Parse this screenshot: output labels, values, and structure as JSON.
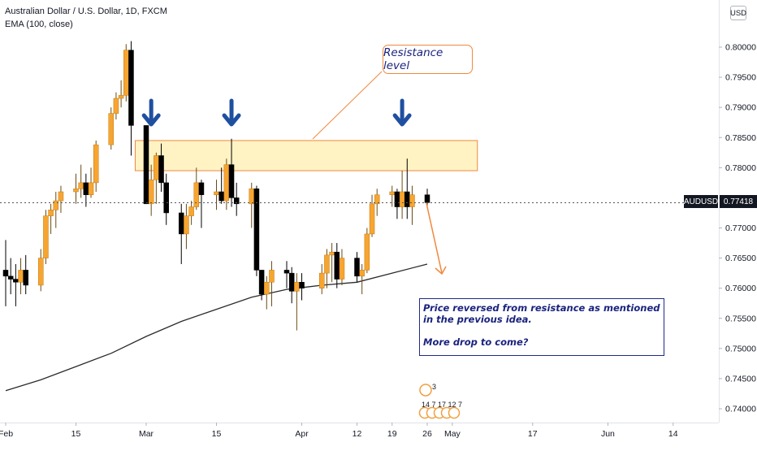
{
  "legend": {
    "symbol_line": "Australian Dollar / U.S. Dollar, 1D, FXCM",
    "indicator_line": "EMA (100, close)"
  },
  "currency_button": "USD",
  "price_tag": {
    "symbol": "AUDUSD",
    "value": "0.77418"
  },
  "callout": {
    "label": "Resistance level"
  },
  "note": {
    "lines": [
      "Price reversed from resistance as mentioned",
      "in the previous idea.",
      "",
      "More drop to come?"
    ]
  },
  "ideas_badges": {
    "top_count": "3",
    "row_counts": [
      "14",
      "7",
      "17",
      "12",
      "7"
    ]
  },
  "colors": {
    "up_candle": "#f7a531",
    "down_candle": "#000000",
    "ema_line": "#2b2b2b",
    "resistance_fill": "#fff3c4",
    "resistance_border": "#f0883e",
    "arrow": "#1f4fa0",
    "dotted_price_line": "#555555"
  },
  "chart_data": {
    "type": "candlestick",
    "title": "Australian Dollar / U.S. Dollar, 1D, FXCM",
    "y_axis": {
      "ticks": [
        "0.80000",
        "0.79500",
        "0.79000",
        "0.78500",
        "0.78000",
        "0.77500",
        "0.77000",
        "0.76500",
        "0.76000",
        "0.75500",
        "0.75000",
        "0.74500",
        "0.74000"
      ],
      "range": [
        0.7375,
        0.8075
      ],
      "side": "right"
    },
    "x_axis": {
      "ticks": [
        "Feb",
        "15",
        "Mar",
        "15",
        "Apr",
        "12",
        "19",
        "26",
        "May",
        "17",
        "Jun",
        "14"
      ],
      "start_date": "2021-02-01",
      "end_date": "2021-06-20"
    },
    "last_price": 0.77418,
    "resistance_zone": {
      "low": 0.7795,
      "high": 0.7845
    },
    "candles": [
      {
        "date": "2021-02-01",
        "open": 0.763,
        "high": 0.768,
        "low": 0.757,
        "close": 0.762
      },
      {
        "date": "2021-02-02",
        "open": 0.762,
        "high": 0.765,
        "low": 0.759,
        "close": 0.7615
      },
      {
        "date": "2021-02-03",
        "open": 0.7615,
        "high": 0.764,
        "low": 0.757,
        "close": 0.761
      },
      {
        "date": "2021-02-04",
        "open": 0.761,
        "high": 0.765,
        "low": 0.759,
        "close": 0.763
      },
      {
        "date": "2021-02-05",
        "open": 0.763,
        "high": 0.7655,
        "low": 0.759,
        "close": 0.7605
      },
      {
        "date": "2021-02-08",
        "open": 0.7605,
        "high": 0.7665,
        "low": 0.7595,
        "close": 0.765
      },
      {
        "date": "2021-02-09",
        "open": 0.765,
        "high": 0.773,
        "low": 0.764,
        "close": 0.772
      },
      {
        "date": "2021-02-10",
        "open": 0.772,
        "high": 0.774,
        "low": 0.769,
        "close": 0.773
      },
      {
        "date": "2021-02-11",
        "open": 0.773,
        "high": 0.776,
        "low": 0.77,
        "close": 0.7745
      },
      {
        "date": "2021-02-12",
        "open": 0.7745,
        "high": 0.777,
        "low": 0.7725,
        "close": 0.776
      },
      {
        "date": "2021-02-15",
        "open": 0.776,
        "high": 0.779,
        "low": 0.774,
        "close": 0.7765
      },
      {
        "date": "2021-02-16",
        "open": 0.7765,
        "high": 0.7805,
        "low": 0.775,
        "close": 0.7775
      },
      {
        "date": "2021-02-17",
        "open": 0.7775,
        "high": 0.779,
        "low": 0.7735,
        "close": 0.7755
      },
      {
        "date": "2021-02-18",
        "open": 0.7755,
        "high": 0.78,
        "low": 0.775,
        "close": 0.7775
      },
      {
        "date": "2021-02-19",
        "open": 0.7775,
        "high": 0.7845,
        "low": 0.776,
        "close": 0.7838
      },
      {
        "date": "2021-02-22",
        "open": 0.7838,
        "high": 0.79,
        "low": 0.783,
        "close": 0.789
      },
      {
        "date": "2021-02-23",
        "open": 0.789,
        "high": 0.7925,
        "low": 0.788,
        "close": 0.7915
      },
      {
        "date": "2021-02-24",
        "open": 0.7915,
        "high": 0.7945,
        "low": 0.79,
        "close": 0.792
      },
      {
        "date": "2021-02-25",
        "open": 0.792,
        "high": 0.8005,
        "low": 0.791,
        "close": 0.7995
      },
      {
        "date": "2021-02-26",
        "open": 0.7995,
        "high": 0.801,
        "low": 0.782,
        "close": 0.787
      },
      {
        "date": "2021-03-01",
        "open": 0.787,
        "high": 0.787,
        "low": 0.774,
        "close": 0.774
      },
      {
        "date": "2021-03-02",
        "open": 0.774,
        "high": 0.7805,
        "low": 0.772,
        "close": 0.778
      },
      {
        "date": "2021-03-03",
        "open": 0.778,
        "high": 0.7825,
        "low": 0.774,
        "close": 0.782
      },
      {
        "date": "2021-03-04",
        "open": 0.782,
        "high": 0.784,
        "low": 0.776,
        "close": 0.7775
      },
      {
        "date": "2021-03-05",
        "open": 0.7775,
        "high": 0.779,
        "low": 0.7705,
        "close": 0.7725
      },
      {
        "date": "2021-03-08",
        "open": 0.7725,
        "high": 0.774,
        "low": 0.764,
        "close": 0.769
      },
      {
        "date": "2021-03-09",
        "open": 0.769,
        "high": 0.774,
        "low": 0.7665,
        "close": 0.772
      },
      {
        "date": "2021-03-10",
        "open": 0.772,
        "high": 0.7745,
        "low": 0.7705,
        "close": 0.7735
      },
      {
        "date": "2021-03-11",
        "open": 0.7735,
        "high": 0.78,
        "low": 0.773,
        "close": 0.7775
      },
      {
        "date": "2021-03-12",
        "open": 0.7775,
        "high": 0.778,
        "low": 0.77,
        "close": 0.7755
      },
      {
        "date": "2021-03-15",
        "open": 0.7755,
        "high": 0.778,
        "low": 0.773,
        "close": 0.776
      },
      {
        "date": "2021-03-16",
        "open": 0.776,
        "high": 0.78,
        "low": 0.774,
        "close": 0.7745
      },
      {
        "date": "2021-03-17",
        "open": 0.7745,
        "high": 0.7815,
        "low": 0.773,
        "close": 0.7805
      },
      {
        "date": "2021-03-18",
        "open": 0.7805,
        "high": 0.7848,
        "low": 0.7735,
        "close": 0.775
      },
      {
        "date": "2021-03-19",
        "open": 0.775,
        "high": 0.7775,
        "low": 0.772,
        "close": 0.774
      },
      {
        "date": "2021-03-22",
        "open": 0.774,
        "high": 0.7775,
        "low": 0.77,
        "close": 0.7765
      },
      {
        "date": "2021-03-23",
        "open": 0.7765,
        "high": 0.777,
        "low": 0.762,
        "close": 0.763
      },
      {
        "date": "2021-03-24",
        "open": 0.763,
        "high": 0.763,
        "low": 0.758,
        "close": 0.759
      },
      {
        "date": "2021-03-25",
        "open": 0.759,
        "high": 0.762,
        "low": 0.7565,
        "close": 0.761
      },
      {
        "date": "2021-03-26",
        "open": 0.761,
        "high": 0.7645,
        "low": 0.757,
        "close": 0.763
      },
      {
        "date": "2021-03-29",
        "open": 0.763,
        "high": 0.7645,
        "low": 0.76,
        "close": 0.7625
      },
      {
        "date": "2021-03-30",
        "open": 0.7625,
        "high": 0.7635,
        "low": 0.7575,
        "close": 0.7595
      },
      {
        "date": "2021-03-31",
        "open": 0.7595,
        "high": 0.7625,
        "low": 0.753,
        "close": 0.761
      },
      {
        "date": "2021-04-01",
        "open": 0.761,
        "high": 0.7625,
        "low": 0.758,
        "close": 0.76
      },
      {
        "date": "2021-04-05",
        "open": 0.76,
        "high": 0.764,
        "low": 0.759,
        "close": 0.7625
      },
      {
        "date": "2021-04-06",
        "open": 0.7625,
        "high": 0.7665,
        "low": 0.76,
        "close": 0.7655
      },
      {
        "date": "2021-04-07",
        "open": 0.7655,
        "high": 0.7675,
        "low": 0.761,
        "close": 0.766
      },
      {
        "date": "2021-04-08",
        "open": 0.766,
        "high": 0.7675,
        "low": 0.76,
        "close": 0.7615
      },
      {
        "date": "2021-04-09",
        "open": 0.7615,
        "high": 0.7665,
        "low": 0.7605,
        "close": 0.765
      },
      {
        "date": "2021-04-12",
        "open": 0.765,
        "high": 0.766,
        "low": 0.761,
        "close": 0.762
      },
      {
        "date": "2021-04-13",
        "open": 0.762,
        "high": 0.764,
        "low": 0.759,
        "close": 0.763
      },
      {
        "date": "2021-04-14",
        "open": 0.763,
        "high": 0.77,
        "low": 0.7625,
        "close": 0.769
      },
      {
        "date": "2021-04-15",
        "open": 0.769,
        "high": 0.7755,
        "low": 0.7685,
        "close": 0.774
      },
      {
        "date": "2021-04-16",
        "open": 0.774,
        "high": 0.7765,
        "low": 0.772,
        "close": 0.7755
      },
      {
        "date": "2021-04-19",
        "open": 0.7755,
        "high": 0.777,
        "low": 0.7735,
        "close": 0.776
      },
      {
        "date": "2021-04-20",
        "open": 0.776,
        "high": 0.7765,
        "low": 0.7715,
        "close": 0.7735
      },
      {
        "date": "2021-04-21",
        "open": 0.7735,
        "high": 0.7795,
        "low": 0.7715,
        "close": 0.776
      },
      {
        "date": "2021-04-22",
        "open": 0.776,
        "high": 0.7815,
        "low": 0.7715,
        "close": 0.7735
      },
      {
        "date": "2021-04-23",
        "open": 0.7735,
        "high": 0.777,
        "low": 0.7705,
        "close": 0.7755
      },
      {
        "date": "2021-04-26",
        "open": 0.7755,
        "high": 0.7765,
        "low": 0.7735,
        "close": 0.7742
      }
    ],
    "ema": {
      "name": "EMA (100, close)",
      "points": [
        {
          "date": "2021-02-01",
          "value": 0.743
        },
        {
          "date": "2021-02-08",
          "value": 0.7448
        },
        {
          "date": "2021-02-15",
          "value": 0.747
        },
        {
          "date": "2021-02-22",
          "value": 0.7492
        },
        {
          "date": "2021-03-01",
          "value": 0.752
        },
        {
          "date": "2021-03-08",
          "value": 0.7545
        },
        {
          "date": "2021-03-15",
          "value": 0.7565
        },
        {
          "date": "2021-03-22",
          "value": 0.7585
        },
        {
          "date": "2021-03-29",
          "value": 0.7598
        },
        {
          "date": "2021-04-05",
          "value": 0.7605
        },
        {
          "date": "2021-04-12",
          "value": 0.761
        },
        {
          "date": "2021-04-19",
          "value": 0.7625
        },
        {
          "date": "2021-04-26",
          "value": 0.764
        }
      ]
    }
  }
}
